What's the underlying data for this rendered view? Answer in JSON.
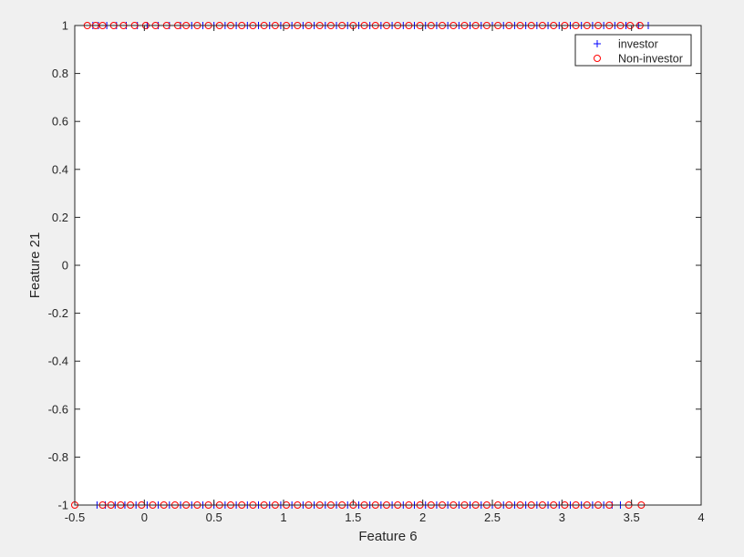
{
  "chart_data": {
    "type": "scatter",
    "title": "",
    "xlabel": "Feature 6",
    "ylabel": "Feature 21",
    "xlim": [
      -0.5,
      4
    ],
    "ylim": [
      -1,
      1
    ],
    "xticks": [
      "-0.5",
      "0",
      "0.5",
      "1",
      "1.5",
      "2",
      "2.5",
      "3",
      "3.5",
      "4"
    ],
    "yticks": [
      "-1",
      "-0.8",
      "-0.6",
      "-0.4",
      "-0.2",
      "0",
      "0.2",
      "0.4",
      "0.6",
      "0.8",
      "1"
    ],
    "grid": false,
    "legend_position": "top-right",
    "series": [
      {
        "name": "investor",
        "marker": "plus",
        "color": "#0000ff",
        "points": [
          [
            -0.37,
            1
          ],
          [
            -0.33,
            1
          ],
          [
            -0.27,
            1
          ],
          [
            -0.2,
            1
          ],
          [
            -0.13,
            1
          ],
          [
            -0.05,
            1
          ],
          [
            0.02,
            1
          ],
          [
            0.1,
            1
          ],
          [
            0.18,
            1
          ],
          [
            0.26,
            1
          ],
          [
            0.34,
            1
          ],
          [
            0.42,
            1
          ],
          [
            0.5,
            1
          ],
          [
            0.58,
            1
          ],
          [
            0.66,
            1
          ],
          [
            0.74,
            1
          ],
          [
            0.82,
            1
          ],
          [
            0.9,
            1
          ],
          [
            0.98,
            1
          ],
          [
            1.06,
            1
          ],
          [
            1.14,
            1
          ],
          [
            1.22,
            1
          ],
          [
            1.3,
            1
          ],
          [
            1.38,
            1
          ],
          [
            1.46,
            1
          ],
          [
            1.54,
            1
          ],
          [
            1.62,
            1
          ],
          [
            1.7,
            1
          ],
          [
            1.78,
            1
          ],
          [
            1.86,
            1
          ],
          [
            1.94,
            1
          ],
          [
            2.02,
            1
          ],
          [
            2.1,
            1
          ],
          [
            2.18,
            1
          ],
          [
            2.26,
            1
          ],
          [
            2.34,
            1
          ],
          [
            2.42,
            1
          ],
          [
            2.5,
            1
          ],
          [
            2.58,
            1
          ],
          [
            2.66,
            1
          ],
          [
            2.74,
            1
          ],
          [
            2.82,
            1
          ],
          [
            2.9,
            1
          ],
          [
            2.98,
            1
          ],
          [
            3.06,
            1
          ],
          [
            3.14,
            1
          ],
          [
            3.22,
            1
          ],
          [
            3.3,
            1
          ],
          [
            3.38,
            1
          ],
          [
            3.46,
            1
          ],
          [
            3.55,
            1
          ],
          [
            3.62,
            1
          ],
          [
            -0.34,
            -1
          ],
          [
            -0.28,
            -1
          ],
          [
            -0.21,
            -1
          ],
          [
            -0.14,
            -1
          ],
          [
            -0.06,
            -1
          ],
          [
            0.02,
            -1
          ],
          [
            0.1,
            -1
          ],
          [
            0.18,
            -1
          ],
          [
            0.26,
            -1
          ],
          [
            0.34,
            -1
          ],
          [
            0.42,
            -1
          ],
          [
            0.5,
            -1
          ],
          [
            0.58,
            -1
          ],
          [
            0.66,
            -1
          ],
          [
            0.74,
            -1
          ],
          [
            0.82,
            -1
          ],
          [
            0.9,
            -1
          ],
          [
            0.98,
            -1
          ],
          [
            1.06,
            -1
          ],
          [
            1.14,
            -1
          ],
          [
            1.22,
            -1
          ],
          [
            1.3,
            -1
          ],
          [
            1.38,
            -1
          ],
          [
            1.46,
            -1
          ],
          [
            1.54,
            -1
          ],
          [
            1.62,
            -1
          ],
          [
            1.7,
            -1
          ],
          [
            1.78,
            -1
          ],
          [
            1.86,
            -1
          ],
          [
            1.94,
            -1
          ],
          [
            2.02,
            -1
          ],
          [
            2.1,
            -1
          ],
          [
            2.18,
            -1
          ],
          [
            2.26,
            -1
          ],
          [
            2.34,
            -1
          ],
          [
            2.42,
            -1
          ],
          [
            2.5,
            -1
          ],
          [
            2.58,
            -1
          ],
          [
            2.66,
            -1
          ],
          [
            2.74,
            -1
          ],
          [
            2.82,
            -1
          ],
          [
            2.9,
            -1
          ],
          [
            2.98,
            -1
          ],
          [
            3.06,
            -1
          ],
          [
            3.14,
            -1
          ],
          [
            3.22,
            -1
          ],
          [
            3.3,
            -1
          ],
          [
            3.36,
            -1
          ],
          [
            3.42,
            -1
          ]
        ]
      },
      {
        "name": "Non-investor",
        "marker": "circle",
        "color": "#ff0000",
        "points": [
          [
            -0.41,
            1
          ],
          [
            -0.35,
            1
          ],
          [
            -0.3,
            1
          ],
          [
            -0.22,
            1
          ],
          [
            -0.15,
            1
          ],
          [
            -0.07,
            1
          ],
          [
            0.01,
            1
          ],
          [
            0.08,
            1
          ],
          [
            0.16,
            1
          ],
          [
            0.24,
            1
          ],
          [
            0.3,
            1
          ],
          [
            0.38,
            1
          ],
          [
            0.46,
            1
          ],
          [
            0.54,
            1
          ],
          [
            0.62,
            1
          ],
          [
            0.7,
            1
          ],
          [
            0.78,
            1
          ],
          [
            0.86,
            1
          ],
          [
            0.94,
            1
          ],
          [
            1.02,
            1
          ],
          [
            1.1,
            1
          ],
          [
            1.18,
            1
          ],
          [
            1.26,
            1
          ],
          [
            1.34,
            1
          ],
          [
            1.42,
            1
          ],
          [
            1.5,
            1
          ],
          [
            1.58,
            1
          ],
          [
            1.66,
            1
          ],
          [
            1.74,
            1
          ],
          [
            1.82,
            1
          ],
          [
            1.9,
            1
          ],
          [
            1.98,
            1
          ],
          [
            2.06,
            1
          ],
          [
            2.14,
            1
          ],
          [
            2.22,
            1
          ],
          [
            2.3,
            1
          ],
          [
            2.38,
            1
          ],
          [
            2.46,
            1
          ],
          [
            2.54,
            1
          ],
          [
            2.62,
            1
          ],
          [
            2.7,
            1
          ],
          [
            2.78,
            1
          ],
          [
            2.86,
            1
          ],
          [
            2.94,
            1
          ],
          [
            3.02,
            1
          ],
          [
            3.1,
            1
          ],
          [
            3.18,
            1
          ],
          [
            3.26,
            1
          ],
          [
            3.34,
            1
          ],
          [
            3.42,
            1
          ],
          [
            3.49,
            1
          ],
          [
            3.56,
            1
          ],
          [
            -0.5,
            -1
          ],
          [
            -0.3,
            -1
          ],
          [
            -0.24,
            -1
          ],
          [
            -0.17,
            -1
          ],
          [
            -0.1,
            -1
          ],
          [
            -0.02,
            -1
          ],
          [
            0.06,
            -1
          ],
          [
            0.14,
            -1
          ],
          [
            0.22,
            -1
          ],
          [
            0.3,
            -1
          ],
          [
            0.38,
            -1
          ],
          [
            0.46,
            -1
          ],
          [
            0.54,
            -1
          ],
          [
            0.62,
            -1
          ],
          [
            0.7,
            -1
          ],
          [
            0.78,
            -1
          ],
          [
            0.86,
            -1
          ],
          [
            0.94,
            -1
          ],
          [
            1.02,
            -1
          ],
          [
            1.1,
            -1
          ],
          [
            1.18,
            -1
          ],
          [
            1.26,
            -1
          ],
          [
            1.34,
            -1
          ],
          [
            1.42,
            -1
          ],
          [
            1.5,
            -1
          ],
          [
            1.58,
            -1
          ],
          [
            1.66,
            -1
          ],
          [
            1.74,
            -1
          ],
          [
            1.82,
            -1
          ],
          [
            1.9,
            -1
          ],
          [
            1.98,
            -1
          ],
          [
            2.06,
            -1
          ],
          [
            2.14,
            -1
          ],
          [
            2.22,
            -1
          ],
          [
            2.3,
            -1
          ],
          [
            2.38,
            -1
          ],
          [
            2.46,
            -1
          ],
          [
            2.54,
            -1
          ],
          [
            2.62,
            -1
          ],
          [
            2.7,
            -1
          ],
          [
            2.78,
            -1
          ],
          [
            2.86,
            -1
          ],
          [
            2.94,
            -1
          ],
          [
            3.02,
            -1
          ],
          [
            3.1,
            -1
          ],
          [
            3.18,
            -1
          ],
          [
            3.26,
            -1
          ],
          [
            3.34,
            -1
          ],
          [
            3.48,
            -1
          ],
          [
            3.57,
            -1
          ]
        ]
      }
    ]
  }
}
